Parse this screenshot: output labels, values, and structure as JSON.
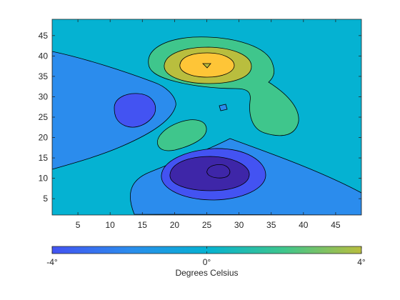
{
  "chart_data": {
    "type": "contour",
    "x_axis": {
      "ticks": [
        5,
        10,
        15,
        20,
        25,
        30,
        35,
        40,
        45
      ],
      "range": [
        1,
        49
      ]
    },
    "y_axis": {
      "ticks": [
        5,
        10,
        15,
        20,
        25,
        30,
        35,
        40,
        45
      ],
      "range": [
        1,
        49
      ]
    },
    "grid": false,
    "levels": [
      -6,
      -4,
      -2,
      0,
      2,
      4,
      6
    ],
    "level_colors": {
      "-6": "#3e26a8",
      "-4": "#4353f2",
      "-2": "#2b8ced",
      "0": "#05b2d2",
      "2": "#3fc68c",
      "4": "#b9be3e",
      "6": "#fec537"
    },
    "contour_line_color": "#000000",
    "colorbar": {
      "orientation": "horizontal",
      "range": [
        -4,
        4
      ],
      "tick_labels": [
        "-4°",
        "0°",
        "4°"
      ],
      "label": "Degrees Celsius",
      "colormap": [
        "#4353f2",
        "#2b8ced",
        "#05b2d2",
        "#3fc68c",
        "#b9be3e"
      ]
    }
  }
}
